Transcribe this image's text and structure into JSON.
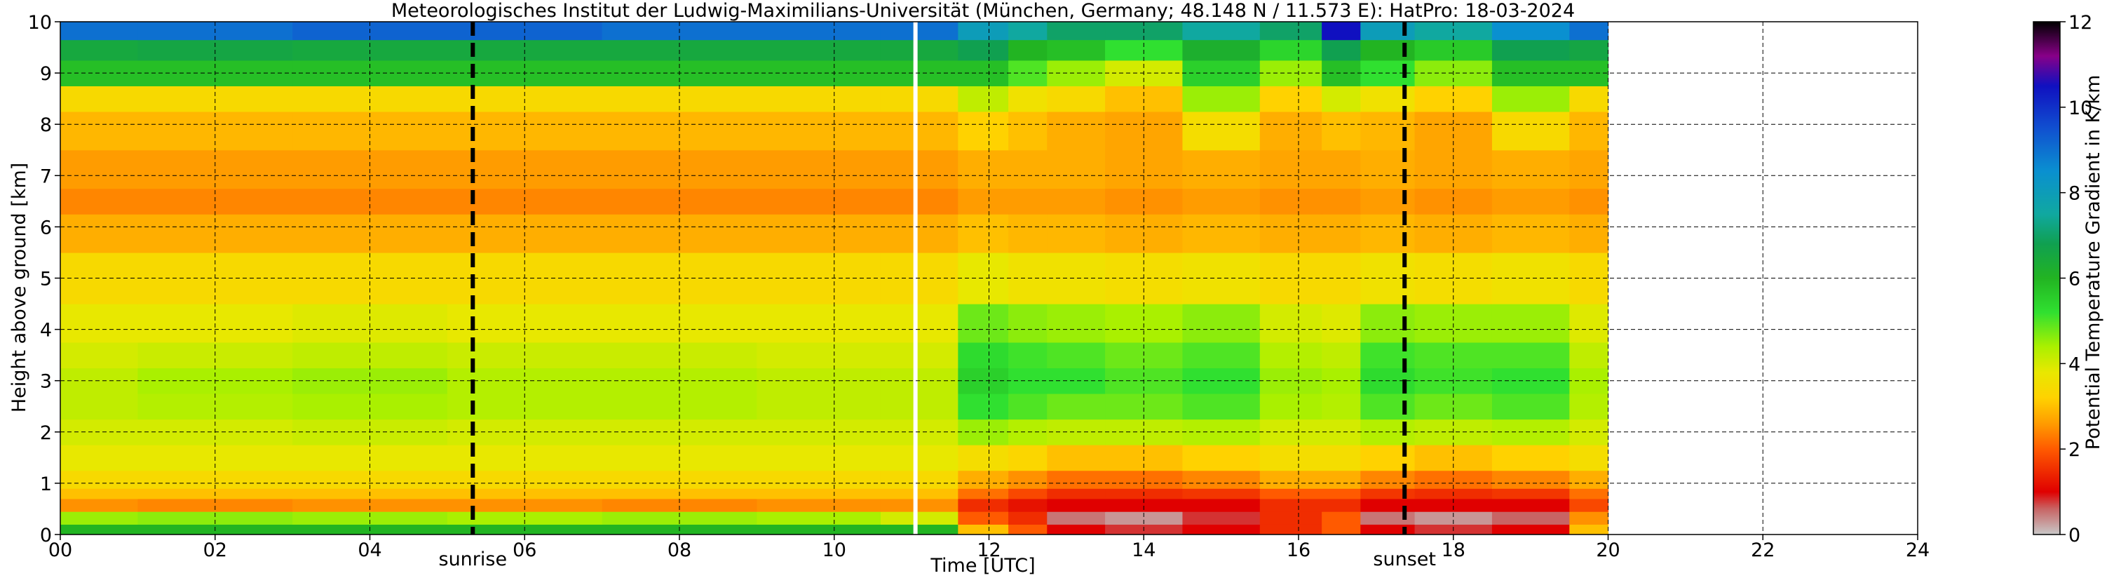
{
  "chart_data": {
    "type": "heatmap",
    "title": "Meteorologisches Institut der Ludwig-Maximilians-Universität (München, Germany; 48.148 N / 11.573 E):    HatPro: 18-03-2024",
    "xlabel": "Time [UTC]",
    "ylabel": "Height above ground [km]",
    "xlim": [
      0,
      24
    ],
    "ylim": [
      0,
      10
    ],
    "x_ticks": [
      "00",
      "02",
      "04",
      "06",
      "08",
      "10",
      "12",
      "14",
      "16",
      "18",
      "20",
      "22",
      "24"
    ],
    "y_ticks": [
      "0",
      "1",
      "2",
      "3",
      "4",
      "5",
      "6",
      "7",
      "8",
      "9",
      "10"
    ],
    "grid": true,
    "data_end_hour": 20,
    "missing_data_gap_hour": 11.05,
    "events": [
      {
        "label": "sunrise",
        "hour": 5.33
      },
      {
        "label": "sunset",
        "hour": 17.37
      }
    ],
    "colorbar": {
      "label": "Potential Temperature Gradient in K/km",
      "range": [
        0,
        12
      ],
      "ticks": [
        "0",
        "2",
        "4",
        "6",
        "8",
        "10",
        "12"
      ]
    },
    "time_columns_hours": [
      0,
      2,
      4,
      6,
      8,
      10,
      11.2,
      12,
      12.5,
      13,
      14,
      15,
      16,
      16.6,
      17,
      18,
      19,
      20
    ],
    "heights_km": [
      0.1,
      0.3,
      0.6,
      0.8,
      1.0,
      1.5,
      2.0,
      2.5,
      3.0,
      3.5,
      4.0,
      5.0,
      6.0,
      6.5,
      7.0,
      8.0,
      8.5,
      9.0,
      9.5,
      9.8
    ],
    "values_k_per_km": [
      [
        6.0,
        6.0,
        6.0,
        6.0,
        6.0,
        6.0,
        6.0,
        3.0,
        2.0,
        1.0,
        0.8,
        1.0,
        1.5,
        2.0,
        1.0,
        0.8,
        1.0,
        3.0
      ],
      [
        4.5,
        4.6,
        4.5,
        4.4,
        4.5,
        4.4,
        4.0,
        2.0,
        1.5,
        0.5,
        0.3,
        0.8,
        1.5,
        2.0,
        0.5,
        0.3,
        0.6,
        2.5
      ],
      [
        2.5,
        2.4,
        2.5,
        2.5,
        2.4,
        2.5,
        2.5,
        1.5,
        1.2,
        1.0,
        1.0,
        1.0,
        1.5,
        1.5,
        1.0,
        1.0,
        1.0,
        1.8
      ],
      [
        3.0,
        3.0,
        3.0,
        3.0,
        3.0,
        3.0,
        3.0,
        2.2,
        1.8,
        1.5,
        1.5,
        1.6,
        2.0,
        2.0,
        1.6,
        1.5,
        1.6,
        2.2
      ],
      [
        3.4,
        3.4,
        3.4,
        3.4,
        3.4,
        3.4,
        3.4,
        2.8,
        2.5,
        2.2,
        2.2,
        2.4,
        2.8,
        2.8,
        2.4,
        2.2,
        2.4,
        2.8
      ],
      [
        3.8,
        3.8,
        3.8,
        3.8,
        3.8,
        3.8,
        3.8,
        3.5,
        3.3,
        3.0,
        3.0,
        3.2,
        3.5,
        3.5,
        3.2,
        3.0,
        3.2,
        3.5
      ],
      [
        4.0,
        4.0,
        4.1,
        4.0,
        4.0,
        4.0,
        4.0,
        4.5,
        4.3,
        4.2,
        4.2,
        4.3,
        4.0,
        4.0,
        4.3,
        4.2,
        4.3,
        4.0
      ],
      [
        4.2,
        4.3,
        4.4,
        4.3,
        4.3,
        4.2,
        4.2,
        5.2,
        5.0,
        4.8,
        4.8,
        5.0,
        4.4,
        4.3,
        5.0,
        4.8,
        5.0,
        4.3
      ],
      [
        4.2,
        4.4,
        4.5,
        4.3,
        4.3,
        4.2,
        4.2,
        5.5,
        5.2,
        5.2,
        5.0,
        5.2,
        4.5,
        4.4,
        5.3,
        5.1,
        5.2,
        4.4
      ],
      [
        4.0,
        4.1,
        4.2,
        4.1,
        4.1,
        4.0,
        4.0,
        5.3,
        5.1,
        5.0,
        4.8,
        5.0,
        4.3,
        4.2,
        5.1,
        5.0,
        5.0,
        4.2
      ],
      [
        3.8,
        3.8,
        3.9,
        3.8,
        3.8,
        3.8,
        3.8,
        4.8,
        4.6,
        4.5,
        4.4,
        4.6,
        4.0,
        3.9,
        4.6,
        4.5,
        4.5,
        3.9
      ],
      [
        3.4,
        3.4,
        3.4,
        3.4,
        3.4,
        3.4,
        3.4,
        3.8,
        3.6,
        3.6,
        3.5,
        3.6,
        3.4,
        3.4,
        3.6,
        3.5,
        3.6,
        3.4
      ],
      [
        2.8,
        2.8,
        2.8,
        2.8,
        2.8,
        2.8,
        2.8,
        3.0,
        2.9,
        2.9,
        2.8,
        2.9,
        2.8,
        2.8,
        2.9,
        2.8,
        2.9,
        2.8
      ],
      [
        2.4,
        2.4,
        2.4,
        2.4,
        2.4,
        2.4,
        2.4,
        2.6,
        2.6,
        2.6,
        2.5,
        2.6,
        2.5,
        2.5,
        2.6,
        2.5,
        2.6,
        2.5
      ],
      [
        2.6,
        2.6,
        2.6,
        2.6,
        2.6,
        2.6,
        2.6,
        2.8,
        2.8,
        2.8,
        2.7,
        2.8,
        2.7,
        2.7,
        2.8,
        2.7,
        2.8,
        2.7
      ],
      [
        2.9,
        2.9,
        2.9,
        2.9,
        2.9,
        2.9,
        2.9,
        3.2,
        3.0,
        2.8,
        2.7,
        3.5,
        2.8,
        3.0,
        2.9,
        2.7,
        3.4,
        2.9
      ],
      [
        3.4,
        3.4,
        3.4,
        3.4,
        3.4,
        3.4,
        3.4,
        4.2,
        3.6,
        3.4,
        3.0,
        4.5,
        3.2,
        4.0,
        3.6,
        3.2,
        4.5,
        3.4
      ],
      [
        5.8,
        5.8,
        5.8,
        5.8,
        5.8,
        5.8,
        5.8,
        5.8,
        5.0,
        4.5,
        4.0,
        5.5,
        4.5,
        5.8,
        5.2,
        4.6,
        5.8,
        5.8
      ],
      [
        6.5,
        6.6,
        6.5,
        6.5,
        6.5,
        6.5,
        6.5,
        6.8,
        6.0,
        5.8,
        5.2,
        6.2,
        5.4,
        6.8,
        6.0,
        5.6,
        6.8,
        6.6
      ],
      [
        9.0,
        9.0,
        9.2,
        9.2,
        9.0,
        9.0,
        9.0,
        8.0,
        7.5,
        7.0,
        7.0,
        7.5,
        7.0,
        10.5,
        8.0,
        7.5,
        8.5,
        9.0
      ]
    ]
  }
}
